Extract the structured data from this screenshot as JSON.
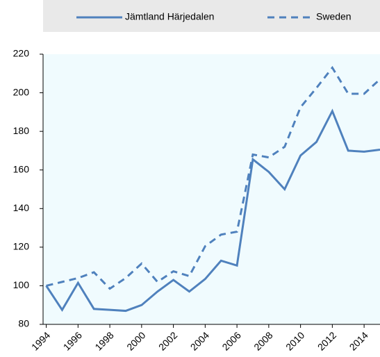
{
  "chart_data": {
    "type": "line",
    "x": [
      1994,
      1995,
      1996,
      1997,
      1998,
      1999,
      2000,
      2001,
      2002,
      2003,
      2004,
      2005,
      2006,
      2007,
      2008,
      2009,
      2010,
      2011,
      2012,
      2013,
      2014,
      2015
    ],
    "series": [
      {
        "name": "Jämtland Härjedalen",
        "color": "#4f81bd",
        "style": "solid",
        "values": [
          100,
          87.5,
          101.5,
          88,
          87.5,
          87,
          90,
          97,
          103,
          97,
          103.5,
          113,
          110.5,
          165.5,
          159,
          150,
          167.5,
          174.5,
          190.5,
          170,
          169.5,
          170.5
        ]
      },
      {
        "name": "Sweden",
        "color": "#4f81bd",
        "style": "dashed",
        "values": [
          100,
          102,
          104,
          107,
          98.5,
          104,
          111.5,
          102,
          107.5,
          105,
          120.5,
          126.5,
          128,
          168,
          166.5,
          172,
          192.5,
          202.5,
          213,
          199.5,
          199.5,
          207
        ]
      }
    ],
    "xlim": [
      1993.8,
      2015
    ],
    "xticks": [
      1994,
      1996,
      1998,
      2000,
      2002,
      2004,
      2006,
      2008,
      2010,
      2012,
      2014
    ],
    "ylim": [
      80,
      220
    ],
    "yticks": [
      80,
      100,
      120,
      140,
      160,
      180,
      200,
      220
    ],
    "grid": false,
    "legend": "top"
  }
}
